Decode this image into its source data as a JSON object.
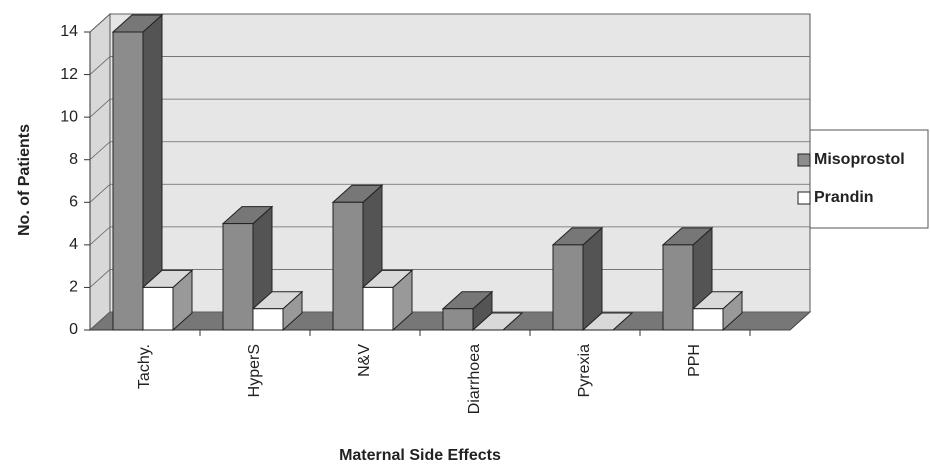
{
  "chart_data": {
    "type": "bar3d",
    "categories": [
      "Tachy.",
      "HyperS",
      "N&V",
      "Diarrhoea",
      "Pyrexia",
      "PPH"
    ],
    "series": [
      {
        "name": "Misoprostol",
        "color": "#8c8c8c",
        "values": [
          14,
          5,
          6,
          1,
          4,
          4
        ]
      },
      {
        "name": "Prandin",
        "color": "#ffffff",
        "values": [
          2,
          1,
          2,
          0,
          0,
          1
        ]
      }
    ],
    "ylim": [
      0,
      14
    ],
    "yticks": [
      0,
      2,
      4,
      6,
      8,
      10,
      12,
      14
    ],
    "grid": true,
    "y_label": "No. of Patients",
    "x_label": "Maternal Side Effects",
    "legend": "right"
  }
}
